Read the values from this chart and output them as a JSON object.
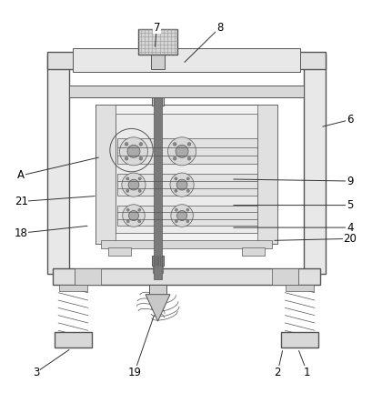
{
  "bg_color": "#ffffff",
  "line_color": "#555555",
  "figsize": [
    4.1,
    4.43
  ],
  "dpi": 100,
  "annotations": {
    "7": [
      0.42,
      0.968,
      0.415,
      0.91
    ],
    "8": [
      0.59,
      0.968,
      0.49,
      0.87
    ],
    "6": [
      0.94,
      0.72,
      0.86,
      0.7
    ],
    "A": [
      0.055,
      0.57,
      0.27,
      0.62
    ],
    "9": [
      0.94,
      0.555,
      0.62,
      0.56
    ],
    "21": [
      0.055,
      0.5,
      0.26,
      0.515
    ],
    "5": [
      0.94,
      0.49,
      0.62,
      0.49
    ],
    "18": [
      0.055,
      0.415,
      0.24,
      0.435
    ],
    "4": [
      0.94,
      0.43,
      0.62,
      0.43
    ],
    "20": [
      0.94,
      0.4,
      0.73,
      0.395
    ],
    "3": [
      0.095,
      0.04,
      0.19,
      0.105
    ],
    "19": [
      0.36,
      0.04,
      0.415,
      0.2
    ],
    "2": [
      0.745,
      0.04,
      0.76,
      0.105
    ],
    "1": [
      0.825,
      0.04,
      0.8,
      0.105
    ]
  }
}
